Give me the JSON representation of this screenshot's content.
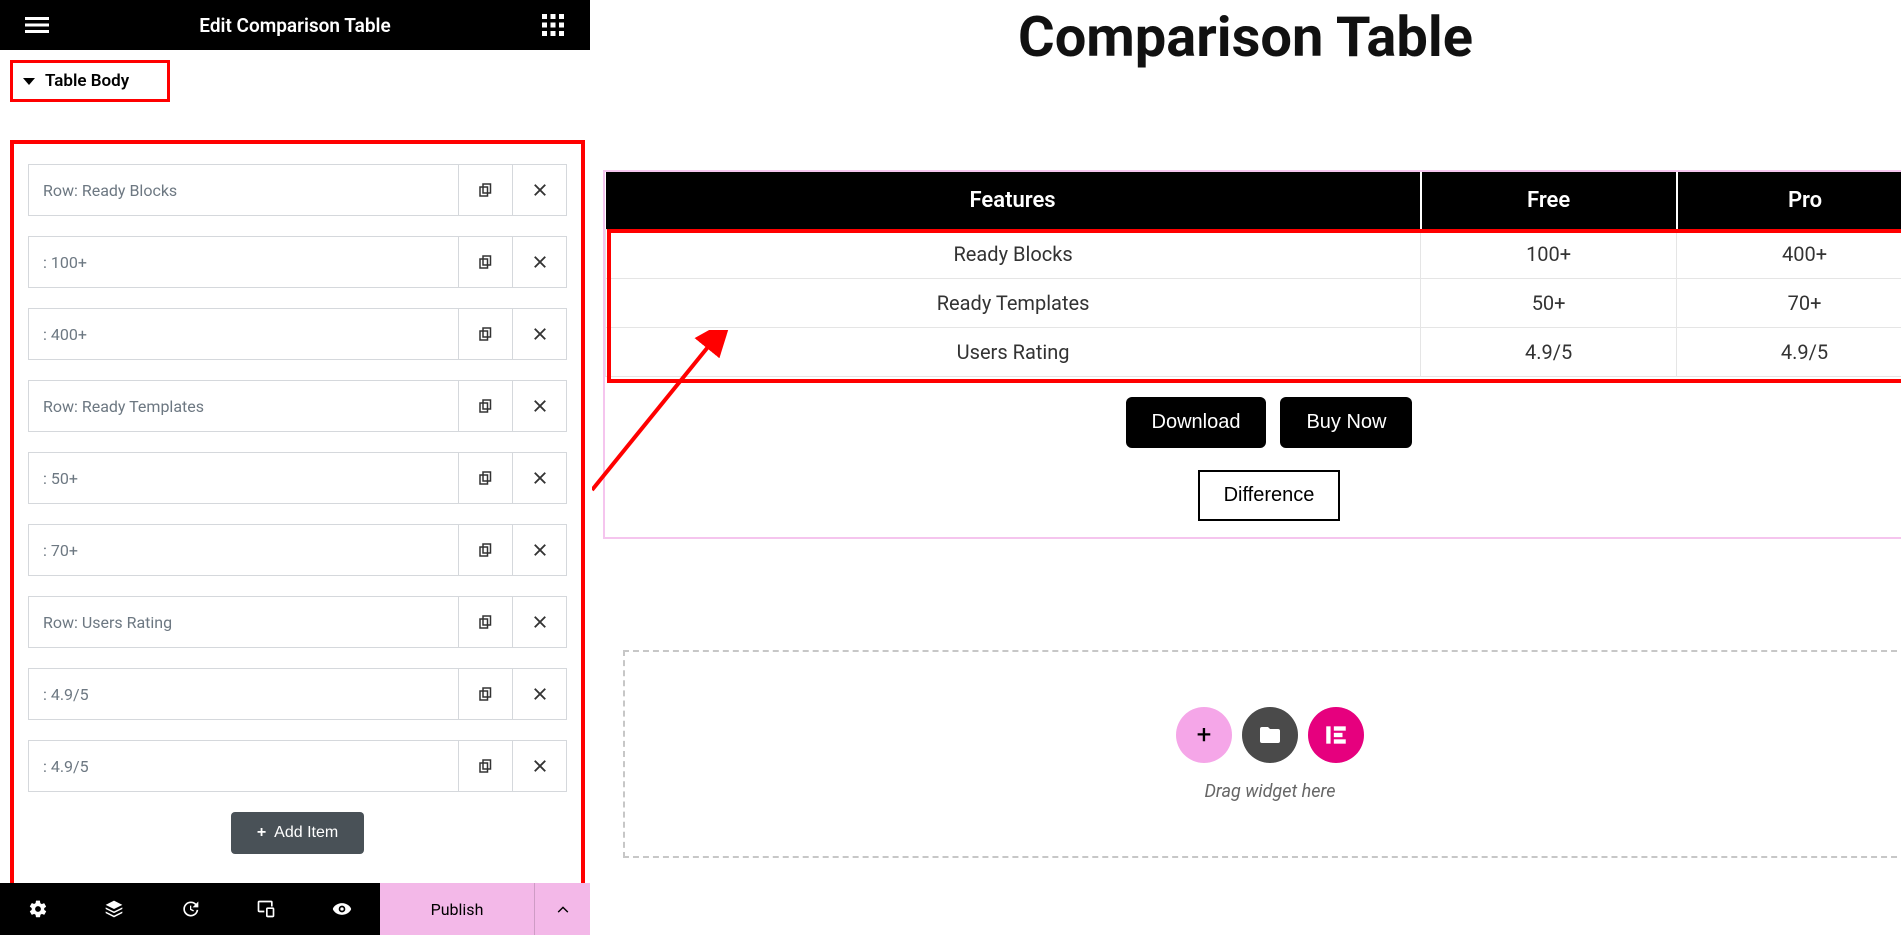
{
  "panel": {
    "title": "Edit Comparison Table",
    "section_label": "Table Body",
    "add_item_label": "Add Item",
    "publish_label": "Publish",
    "items": [
      {
        "label": "Row: Ready Blocks"
      },
      {
        "label": ": 100+"
      },
      {
        "label": ": 400+"
      },
      {
        "label": "Row: Ready Templates"
      },
      {
        "label": ": 50+"
      },
      {
        "label": ": 70+"
      },
      {
        "label": "Row: Users Rating"
      },
      {
        "label": ": 4.9/5"
      },
      {
        "label": ": 4.9/5"
      }
    ]
  },
  "canvas": {
    "page_title": "Comparison Table",
    "table": {
      "headers": [
        "Features",
        "Free",
        "Pro"
      ],
      "rows": [
        [
          "Ready Blocks",
          "100+",
          "400+"
        ],
        [
          "Ready Templates",
          "50+",
          "70+"
        ],
        [
          "Users Rating",
          "4.9/5",
          "4.9/5"
        ]
      ],
      "header_bg": "#000000",
      "header_fg": "#ffffff",
      "cell_border": "#e5e5e5",
      "cell_fg": "#333333"
    },
    "buttons": {
      "download": "Download",
      "buy_now": "Buy Now",
      "difference": "Difference"
    },
    "dropzone_label": "Drag widget here"
  },
  "annotations": {
    "highlight_color": "#ff0000",
    "arrow_color": "#ff0000",
    "widget_outline_color": "#f5c5ee"
  },
  "colors": {
    "panel_header_bg": "#000000",
    "bottom_bar_bg": "#000000",
    "publish_bg": "#f3b8e8",
    "add_item_bg": "#495157",
    "item_border": "#d5d8dc",
    "dz_plus_bg": "#f5a6e8",
    "dz_folder_bg": "#4a4a4a",
    "dz_brand_bg": "#e6007e"
  }
}
